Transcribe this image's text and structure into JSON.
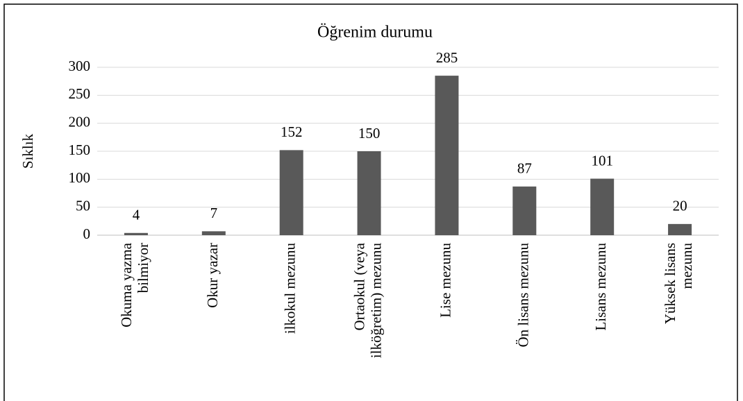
{
  "chart_data": {
    "type": "bar",
    "title": "Öğrenim durumu",
    "y_label": "Sıklık",
    "categories": [
      "Okuma yazma bilmiyor",
      "Okur yazar",
      "ilkokul mezunu",
      "Ortaokul (veya ilköğretim) mezunu",
      "Lise mezunu",
      "Ön lisans mezunu",
      "Lisans mezunu",
      "Yüksek lisans mezunu"
    ],
    "values": [
      4,
      7,
      152,
      150,
      285,
      87,
      101,
      20
    ],
    "color": "#595959",
    "ylim": [
      0,
      300
    ],
    "yticks": [
      0,
      50,
      100,
      150,
      200,
      250,
      300
    ],
    "grid": true
  }
}
